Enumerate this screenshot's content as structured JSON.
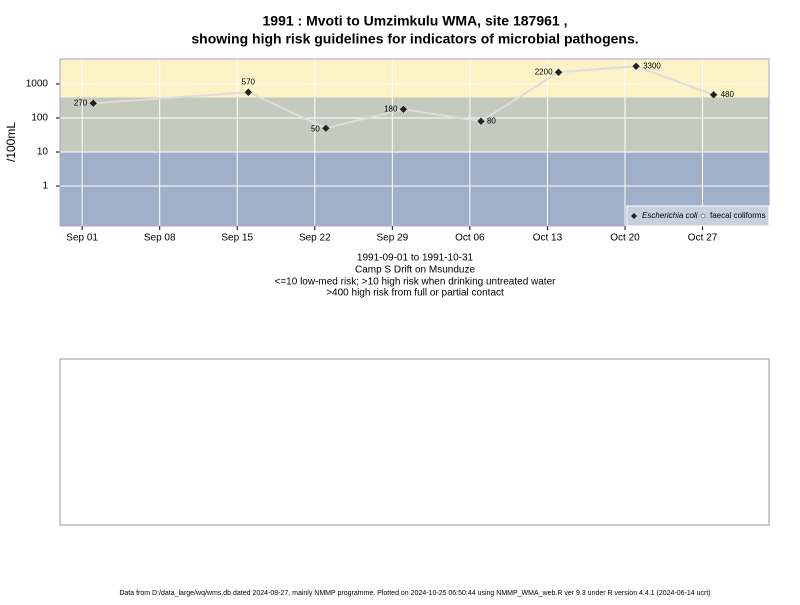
{
  "chart_data": {
    "type": "line",
    "title": "1991 : Mvoti to Umzimkulu WMA, site 187961 ,",
    "subtitle": "showing high risk guidelines for indicators of microbial pathogens.",
    "y_label": "/100mL",
    "notes": [
      "1991-09-01 to 1991-10-31",
      "Camp S Drift on Msunduze",
      "<=10 low-med risk; >10 high risk when drinking untreated water",
      ">400 high risk from full or partial contact"
    ],
    "footer": "Data from D:/data_large/wq/wms.db dated 2024-08-27, mainly NMMP programme. Plotted on 2024-10-25 06:50:44 using NMMP_WMA_web.R ver 9.3 under R version 4.4.1 (2024-06-14 ucrt)",
    "x": [
      "1991-09-02",
      "1991-09-16",
      "1991-09-23",
      "1991-09-30",
      "1991-10-07",
      "1991-10-14",
      "1991-10-21",
      "1991-10-28"
    ],
    "series": [
      {
        "name": "Escherichia coli",
        "color": "#222222",
        "line_color": "#dddddd",
        "values": [
          270,
          570,
          50,
          180,
          80,
          2200,
          3300,
          480
        ]
      },
      {
        "name": "faecal coliforms",
        "color": "#555555",
        "values": [
          null,
          null,
          null,
          null,
          null,
          null,
          null,
          null
        ]
      }
    ],
    "log_y": true,
    "ylim": [
      0.067,
      5400
    ],
    "yticks": [
      1,
      10,
      100,
      1000
    ],
    "xlim": [
      "1991-08-30",
      "1991-11-02"
    ],
    "xticks": [
      {
        "value": "1991-09-01",
        "label": "Sep 01"
      },
      {
        "value": "1991-09-08",
        "label": "Sep 08"
      },
      {
        "value": "1991-09-15",
        "label": "Sep 15"
      },
      {
        "value": "1991-09-22",
        "label": "Sep 22"
      },
      {
        "value": "1991-09-29",
        "label": "Sep 29"
      },
      {
        "value": "1991-10-06",
        "label": "Oct 06"
      },
      {
        "value": "1991-10-13",
        "label": "Oct 13"
      },
      {
        "value": "1991-10-20",
        "label": "Oct 20"
      },
      {
        "value": "1991-10-27",
        "label": "Oct 27"
      }
    ],
    "thresholds": [
      10,
      400
    ],
    "band_colors": [
      "#a0b0c8",
      "#c4cabd",
      "#fbf3c5"
    ],
    "grid": true,
    "legend_position": "bottom-right"
  }
}
